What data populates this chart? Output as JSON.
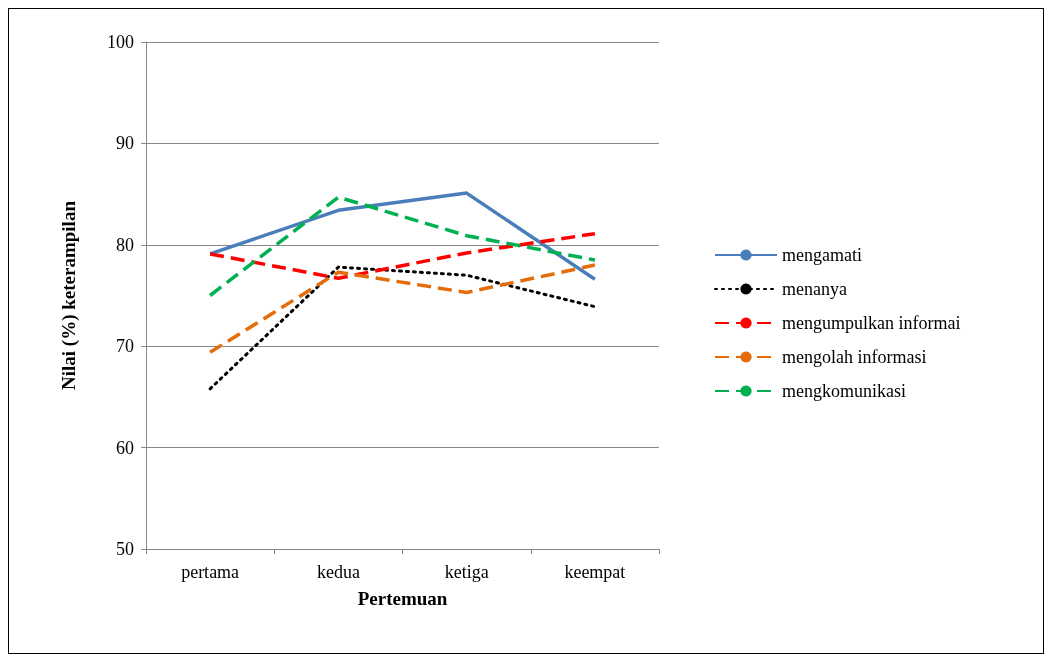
{
  "chart_data": {
    "type": "line",
    "xlabel": "Pertemuan",
    "ylabel": "Nilai (%) keterampilan",
    "categories": [
      "pertama",
      "kedua",
      "ketiga",
      "keempat"
    ],
    "series": [
      {
        "name": "mengamati",
        "color": "#4a7ebb",
        "line_style": "solid",
        "values": [
          79.1,
          83.4,
          85.1,
          76.6
        ]
      },
      {
        "name": "menanya",
        "color": "#000000",
        "line_style": "dotted",
        "values": [
          65.8,
          77.8,
          77.0,
          73.9
        ]
      },
      {
        "name": "mengumpulkan informai",
        "color": "#ff0000",
        "line_style": "dashed",
        "values": [
          79.1,
          76.7,
          79.2,
          81.1
        ]
      },
      {
        "name": "mengolah informasi",
        "color": "#e46c0a",
        "line_style": "dashed",
        "values": [
          69.4,
          77.3,
          75.3,
          78.0
        ]
      },
      {
        "name": "mengkomunikasi",
        "color": "#00b050",
        "line_style": "dashed",
        "values": [
          75.0,
          84.7,
          80.9,
          78.5
        ]
      }
    ],
    "ylim": [
      50,
      100
    ],
    "yticks": [
      50,
      60,
      70,
      80,
      90,
      100
    ],
    "grid": "y",
    "legend": "right",
    "marker": "none"
  }
}
